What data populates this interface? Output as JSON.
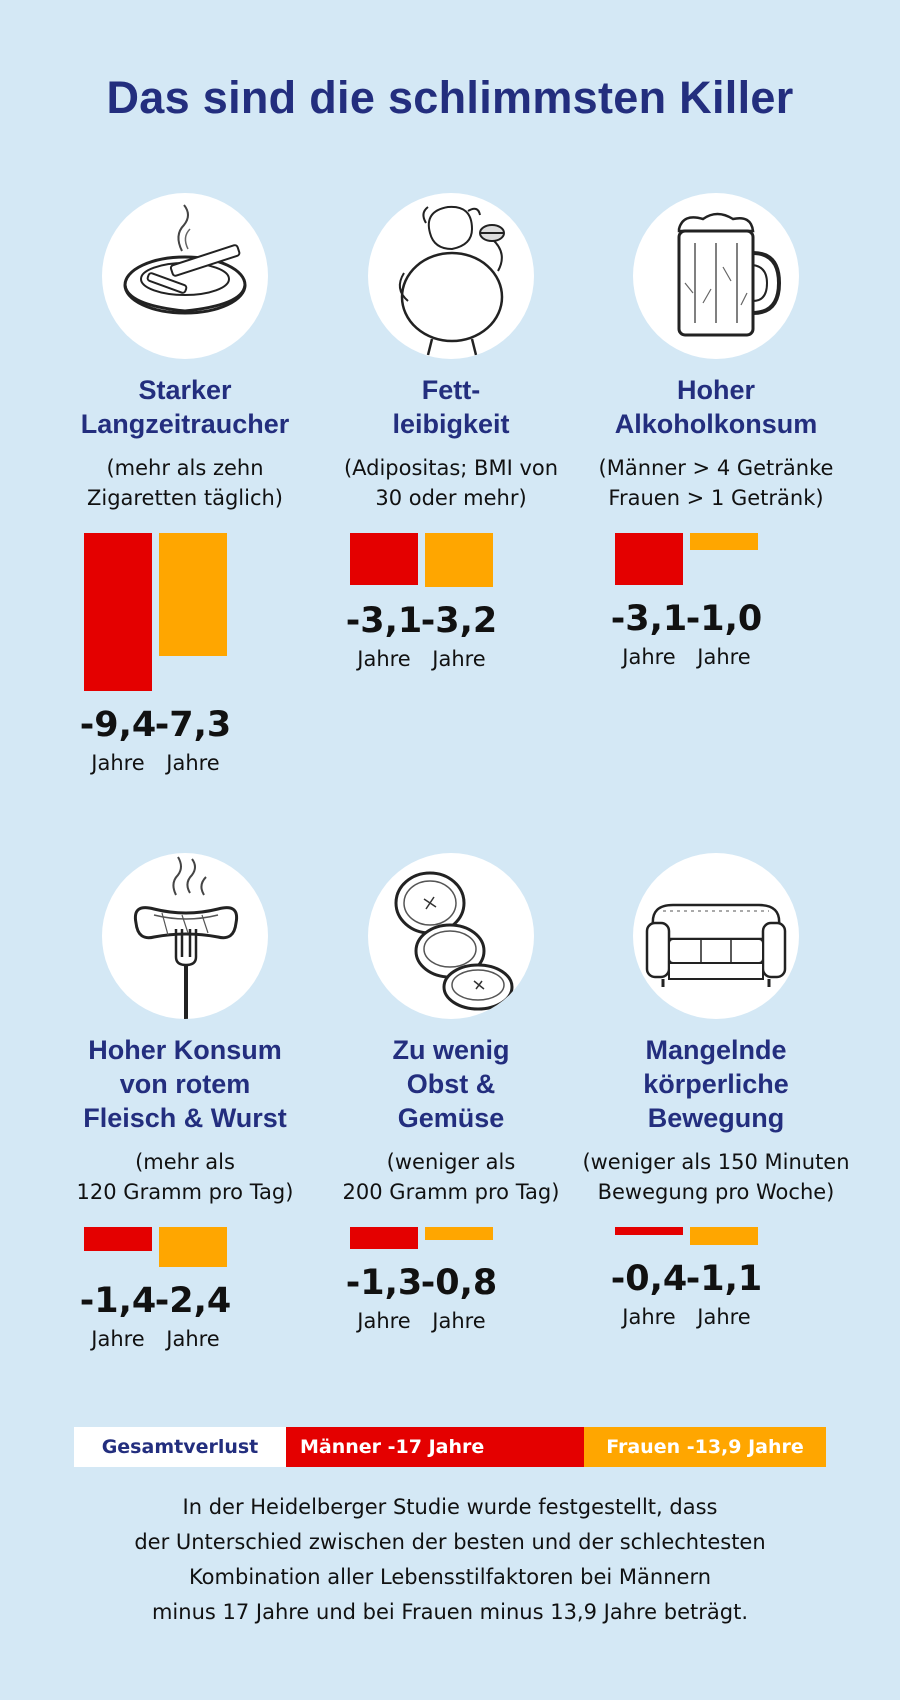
{
  "title": "Das sind die schlimmsten Killer",
  "colors": {
    "background": "#d4e8f5",
    "men": "#e40000",
    "women": "#ffa600",
    "heading": "#232e7e"
  },
  "chart_data": {
    "type": "bar",
    "unit": "Jahre",
    "series": [
      {
        "color": "#e40000"
      },
      {
        "color": "#ffa600"
      }
    ],
    "categories": [
      {
        "icon": "ashtray-cigarette-icon",
        "title": "Starker\nLangzeitraucher",
        "note": "(mehr als zehn\nZigaretten täglich)",
        "men": -9.4,
        "women": -7.3,
        "men_label": "-9,4",
        "women_label": "-7,3"
      },
      {
        "icon": "obese-person-burger-icon",
        "title": "Fett-\nleibigkeit",
        "note": "(Adipositas; BMI von\n30 oder mehr)",
        "men": -3.1,
        "women": -3.2,
        "men_label": "-3,1",
        "women_label": "-3,2"
      },
      {
        "icon": "beer-mug-icon",
        "title": "Hoher\nAlkoholkonsum",
        "note": "(Männer > 4 Getränke\nFrauen > 1 Getränk)",
        "men": -3.1,
        "women": -1.0,
        "men_label": "-3,1",
        "women_label": "-1,0"
      },
      {
        "icon": "sausage-fork-icon",
        "title": "Hoher Konsum\nvon rotem\nFleisch & Wurst",
        "note": "(mehr als\n120 Gramm pro Tag)",
        "men": -1.4,
        "women": -2.4,
        "men_label": "-1,4",
        "women_label": "-2,4"
      },
      {
        "icon": "cucumber-slices-icon",
        "title": "Zu wenig\nObst &\nGemüse",
        "note": "(weniger als\n200 Gramm pro Tag)",
        "men": -1.3,
        "women": -0.8,
        "men_label": "-1,3",
        "women_label": "-0,8"
      },
      {
        "icon": "sofa-icon",
        "title": "Mangelnde\nkörperliche\nBewegung",
        "note": "(weniger als 150 Minuten\nBewegung  pro Woche)",
        "men": -0.4,
        "women": -1.1,
        "men_label": "-0,4",
        "women_label": "-1,1"
      }
    ],
    "total": {
      "label": "Gesamtverlust",
      "men": "Männer -17 Jahre",
      "women": "Frauen -13,9 Jahre",
      "men_value": -17,
      "women_value": -13.9
    }
  },
  "footer": "In der Heidelberger Studie wurde festgestellt, dass\nder Unterschied zwischen der besten und der schlechtesten\nKombination aller Lebensstilfaktoren bei Männern\nminus 17 Jahre und bei Frauen minus 13,9 Jahre beträgt."
}
